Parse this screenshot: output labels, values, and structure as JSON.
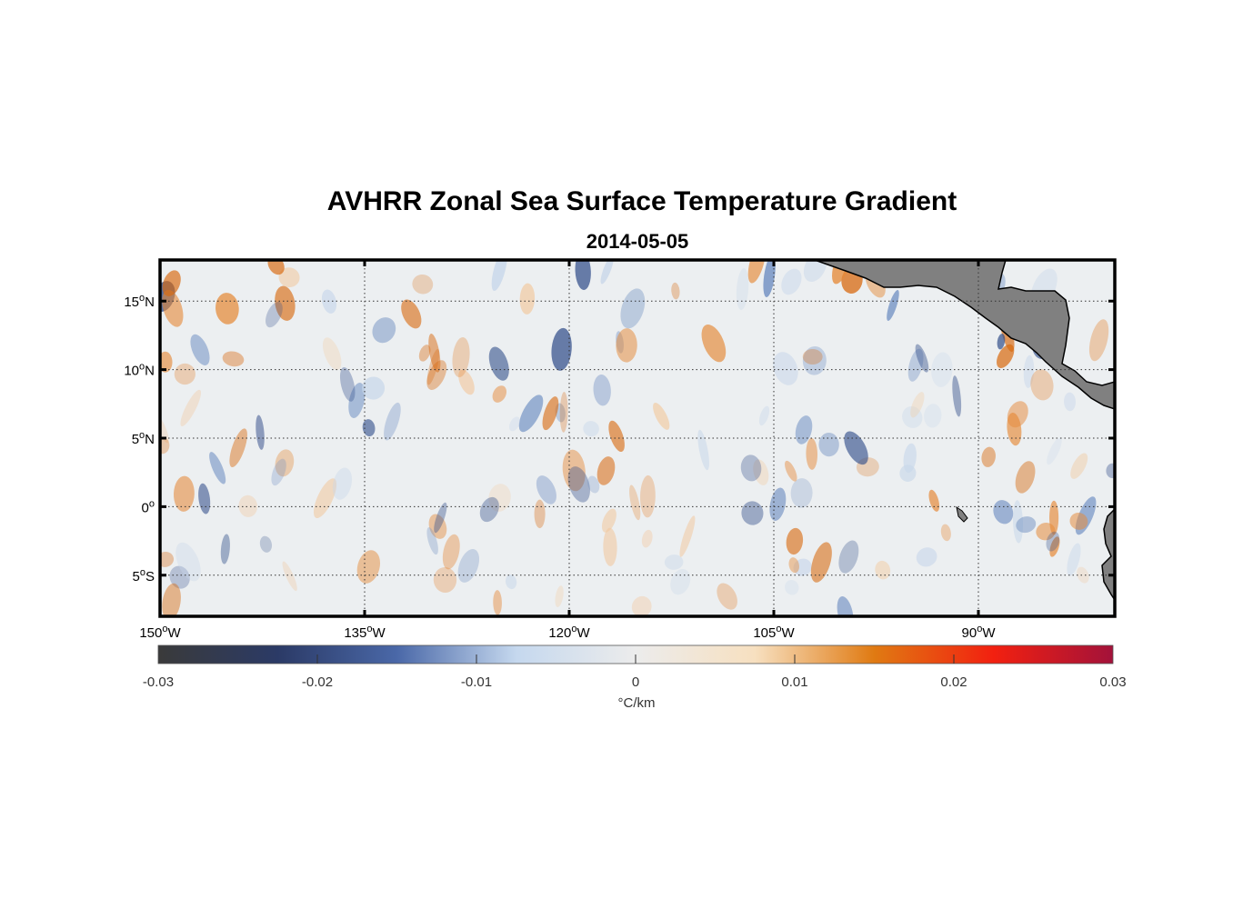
{
  "map": {
    "title": "AVHRR Zonal Sea Surface Temperature Gradient",
    "date": "2014-05-05",
    "lon_range": [
      -150,
      -80
    ],
    "lat_range": [
      -8,
      18
    ],
    "lon_ticks": [
      {
        "value": -150,
        "deg": "150",
        "hemi": "W"
      },
      {
        "value": -135,
        "deg": "135",
        "hemi": "W"
      },
      {
        "value": -120,
        "deg": "120",
        "hemi": "W"
      },
      {
        "value": -105,
        "deg": "105",
        "hemi": "W"
      },
      {
        "value": -90,
        "deg": "90",
        "hemi": "W"
      }
    ],
    "lat_ticks": [
      {
        "value": 15,
        "deg": "15",
        "hemi": "N"
      },
      {
        "value": 10,
        "deg": "10",
        "hemi": "N"
      },
      {
        "value": 5,
        "deg": "5",
        "hemi": "N"
      },
      {
        "value": 0,
        "deg": "0",
        "hemi": ""
      },
      {
        "value": -5,
        "deg": "5",
        "hemi": "S"
      }
    ],
    "grid": "dotted",
    "land_color": "#808080"
  },
  "colorbar": {
    "min": -0.03,
    "max": 0.03,
    "ticks": [
      "-0.03",
      "-0.02",
      "-0.01",
      "0",
      "0.01",
      "0.02",
      "0.03"
    ],
    "units": "°C/km",
    "colors": [
      "#3a3a3a",
      "#2b3a66",
      "#4a68a8",
      "#c5d8ee",
      "#ececec",
      "#f7e0c0",
      "#e07a12",
      "#f22010",
      "#a3123a"
    ]
  }
}
